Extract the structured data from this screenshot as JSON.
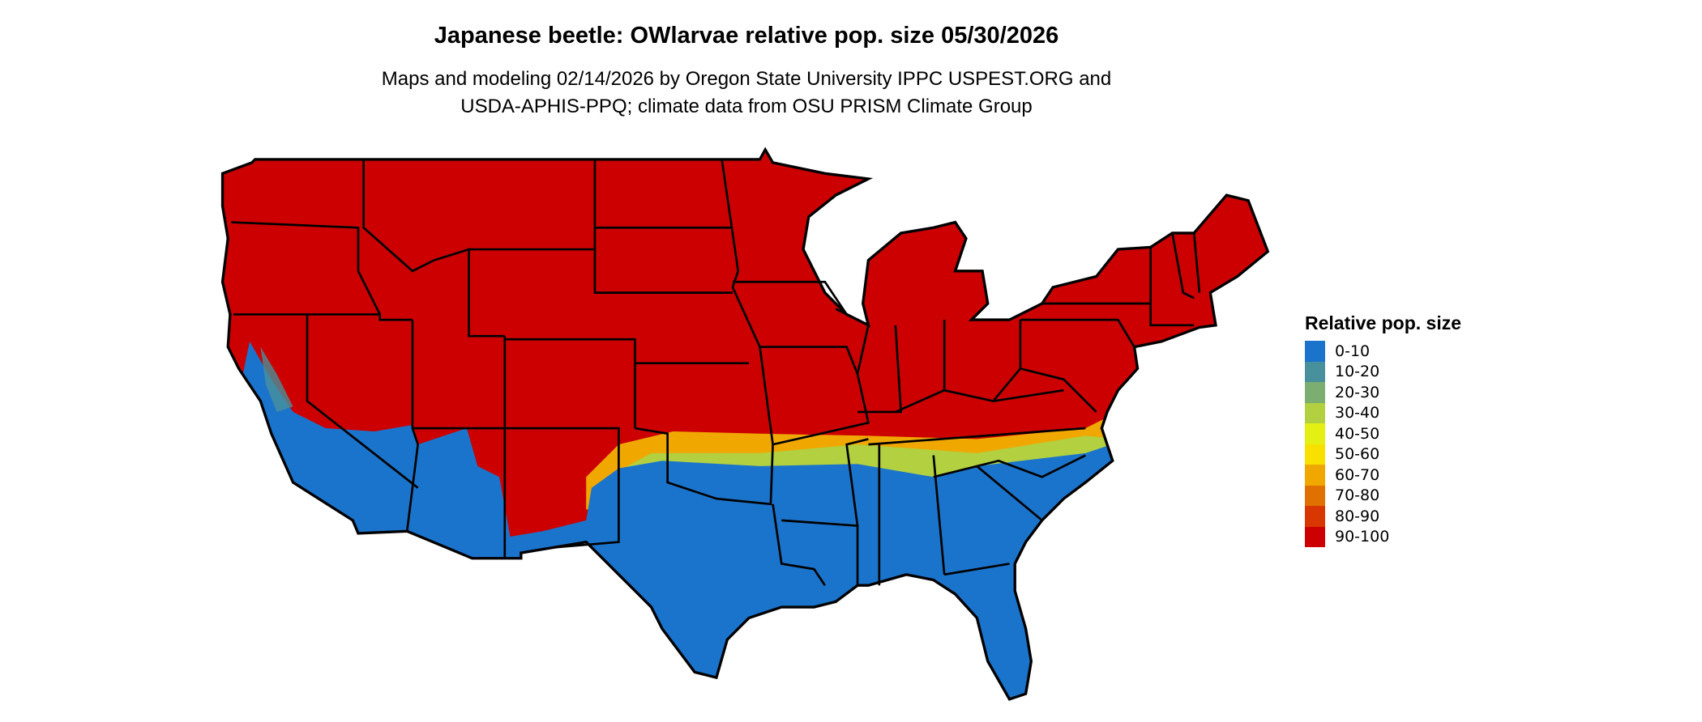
{
  "title": "Japanese beetle: OWlarvae relative pop. size 05/30/2026",
  "subtitle": [
    "Maps and modeling 02/14/2026 by Oregon State University IPPC USPEST.ORG and",
    "USDA-APHIS-PPQ; climate data from OSU PRISM Climate Group"
  ],
  "legend": {
    "title": "Relative pop. size",
    "items": [
      {
        "label": "0-10",
        "color": "#1b74cc"
      },
      {
        "label": "10-20",
        "color": "#48909b"
      },
      {
        "label": "20-30",
        "color": "#7bae70"
      },
      {
        "label": "30-40",
        "color": "#b2d040"
      },
      {
        "label": "40-50",
        "color": "#e4f014"
      },
      {
        "label": "50-60",
        "color": "#f8e000"
      },
      {
        "label": "60-70",
        "color": "#f0a800"
      },
      {
        "label": "70-80",
        "color": "#e07000"
      },
      {
        "label": "80-90",
        "color": "#d83800"
      },
      {
        "label": "90-100",
        "color": "#cc0000"
      }
    ]
  }
}
